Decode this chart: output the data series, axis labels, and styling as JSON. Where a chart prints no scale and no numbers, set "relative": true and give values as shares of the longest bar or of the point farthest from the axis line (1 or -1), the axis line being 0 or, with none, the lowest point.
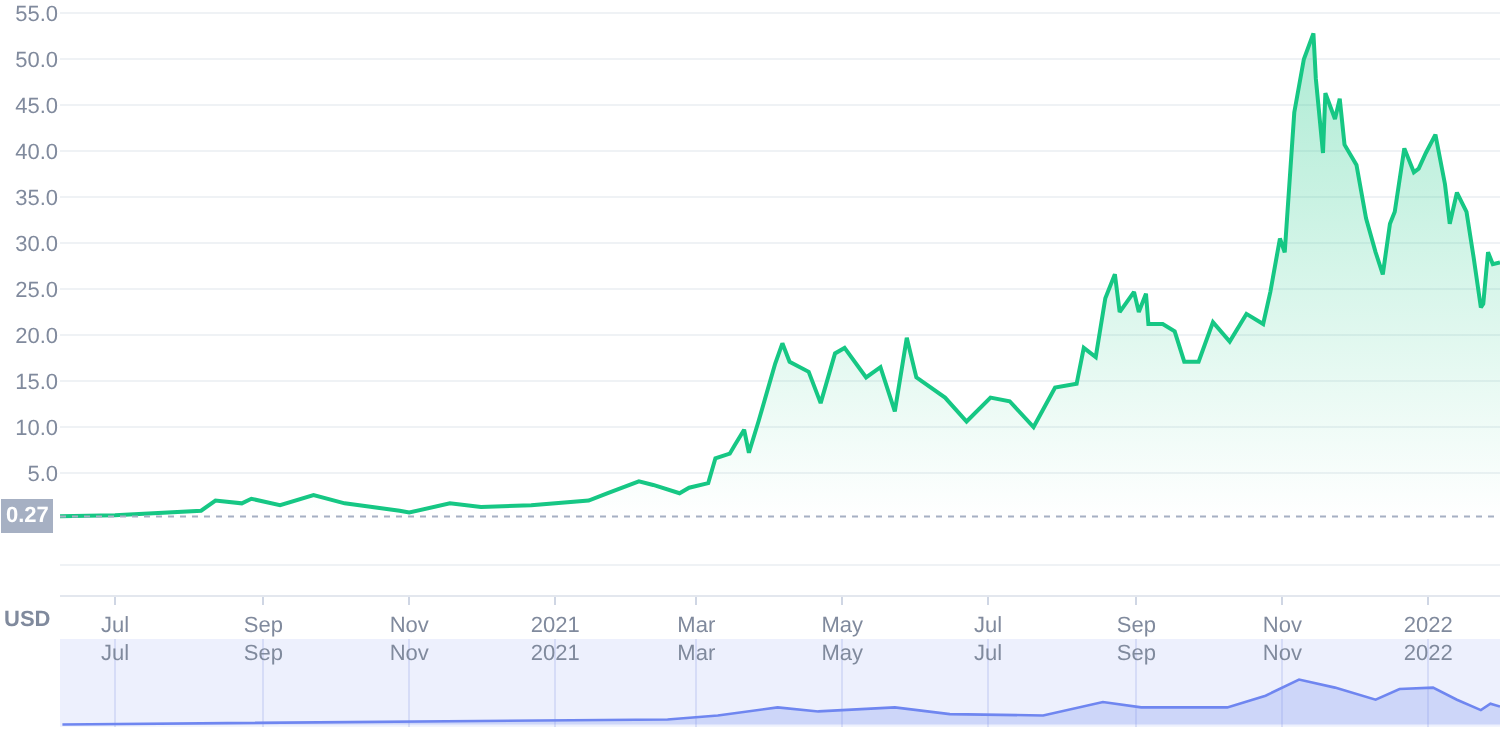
{
  "chart_data": [
    {
      "type": "area",
      "ylabel": "USD",
      "ylim": [
        -8.3,
        56
      ],
      "xlim": [
        "2020-06-08",
        "2022-01-31"
      ],
      "yticks": [
        {
          "value": -5,
          "label": null
        },
        {
          "value": 5,
          "label": "5.0"
        },
        {
          "value": 10,
          "label": "10.0"
        },
        {
          "value": 15,
          "label": "15.0"
        },
        {
          "value": 20,
          "label": "20.0"
        },
        {
          "value": 25,
          "label": "25.0"
        },
        {
          "value": 30,
          "label": "30.0"
        },
        {
          "value": 35,
          "label": "35.0"
        },
        {
          "value": 40,
          "label": "40.0"
        },
        {
          "value": 45,
          "label": "45.0"
        },
        {
          "value": 50,
          "label": "50.0"
        },
        {
          "value": 55,
          "label": "55.0"
        }
      ],
      "xticks": [
        {
          "value": "2020-07-01",
          "label": "Jul"
        },
        {
          "value": "2020-09-01",
          "label": "Sep"
        },
        {
          "value": "2020-11-01",
          "label": "Nov"
        },
        {
          "value": "2021-01-01",
          "label": "2021"
        },
        {
          "value": "2021-03-01",
          "label": "Mar"
        },
        {
          "value": "2021-05-01",
          "label": "May"
        },
        {
          "value": "2021-07-01",
          "label": "Jul"
        },
        {
          "value": "2021-09-01",
          "label": "Sep"
        },
        {
          "value": "2021-11-01",
          "label": "Nov"
        },
        {
          "value": "2022-01-01",
          "label": "2022"
        }
      ],
      "grid": "y",
      "marker": "none",
      "ref_lines": [
        {
          "axis": "y",
          "value": 0.27,
          "label": "0.27",
          "color": "#a6b0c3",
          "line_style": "dotted"
        }
      ],
      "x": [
        "2020-06-08",
        "2020-07-01",
        "2020-08-06",
        "2020-08-12",
        "2020-08-23",
        "2020-08-27",
        "2020-09-08",
        "2020-09-22",
        "2020-10-05",
        "2020-10-28",
        "2020-11-01",
        "2020-11-18",
        "2020-12-01",
        "2020-12-22",
        "2021-01-15",
        "2021-01-23",
        "2021-02-05",
        "2021-02-11",
        "2021-02-22",
        "2021-02-26",
        "2021-03-06",
        "2021-03-09",
        "2021-03-15",
        "2021-03-17",
        "2021-03-21",
        "2021-03-23",
        "2021-03-27",
        "2021-04-03",
        "2021-04-06",
        "2021-04-09",
        "2021-04-17",
        "2021-04-22",
        "2021-04-28",
        "2021-05-02",
        "2021-05-11",
        "2021-05-17",
        "2021-05-23",
        "2021-05-28",
        "2021-06-01",
        "2021-06-13",
        "2021-06-22",
        "2021-07-02",
        "2021-07-10",
        "2021-07-20",
        "2021-07-29",
        "2021-08-07",
        "2021-08-10",
        "2021-08-15",
        "2021-08-19",
        "2021-08-23",
        "2021-08-25",
        "2021-08-31",
        "2021-09-02",
        "2021-09-05",
        "2021-09-06",
        "2021-09-12",
        "2021-09-17",
        "2021-09-21",
        "2021-09-27",
        "2021-10-03",
        "2021-10-10",
        "2021-10-17",
        "2021-10-24",
        "2021-10-27",
        "2021-10-31",
        "2021-11-02",
        "2021-11-06",
        "2021-11-10",
        "2021-11-14",
        "2021-11-15",
        "2021-11-18",
        "2021-11-19",
        "2021-11-23",
        "2021-11-25",
        "2021-11-27",
        "2021-12-02",
        "2021-12-06",
        "2021-12-10",
        "2021-12-13",
        "2021-12-16",
        "2021-12-18",
        "2021-12-22",
        "2021-12-26",
        "2021-12-28",
        "2021-12-31",
        "2022-01-04",
        "2022-01-08",
        "2022-01-10",
        "2022-01-13",
        "2022-01-17",
        "2022-01-20",
        "2022-01-23",
        "2022-01-24",
        "2022-01-26",
        "2022-01-28",
        "2022-01-31"
      ],
      "series": [
        {
          "color": "#16c784",
          "values": [
            0.3,
            0.4,
            0.9,
            2.0,
            1.7,
            2.2,
            1.5,
            2.6,
            1.7,
            0.9,
            0.7,
            1.7,
            1.3,
            1.5,
            2.0,
            2.8,
            4.1,
            3.7,
            2.8,
            3.4,
            3.9,
            6.6,
            7.1,
            8.0,
            9.7,
            7.2,
            10.6,
            16.9,
            19.1,
            17.1,
            16.0,
            12.6,
            18.0,
            18.6,
            15.4,
            16.5,
            11.7,
            19.7,
            15.4,
            13.2,
            10.6,
            13.2,
            12.8,
            10.0,
            14.3,
            14.7,
            18.6,
            17.6,
            24.0,
            26.6,
            22.5,
            24.7,
            22.5,
            24.5,
            21.2,
            21.2,
            20.4,
            17.1,
            17.1,
            21.4,
            19.3,
            22.3,
            21.2,
            24.7,
            30.5,
            29.0,
            44.2,
            50.0,
            52.8,
            47.9,
            39.8,
            46.3,
            43.5,
            45.7,
            40.7,
            38.5,
            32.7,
            29.0,
            26.6,
            32.1,
            33.4,
            40.3,
            37.7,
            38.1,
            39.8,
            41.8,
            36.4,
            32.1,
            35.5,
            33.4,
            28.4,
            23.0,
            23.4,
            29.0,
            27.7,
            27.9
          ]
        }
      ]
    },
    {
      "type": "area",
      "relative": true,
      "xlim": [
        "2020-06-08",
        "2022-01-31"
      ],
      "xticks": [
        {
          "value": "2020-07-01",
          "label": "Jul"
        },
        {
          "value": "2020-09-01",
          "label": "Sep"
        },
        {
          "value": "2020-11-01",
          "label": "Nov"
        },
        {
          "value": "2021-01-01",
          "label": "2021"
        },
        {
          "value": "2021-03-01",
          "label": "Mar"
        },
        {
          "value": "2021-05-01",
          "label": "May"
        },
        {
          "value": "2021-07-01",
          "label": "Jul"
        },
        {
          "value": "2021-09-01",
          "label": "Sep"
        },
        {
          "value": "2021-11-01",
          "label": "Nov"
        },
        {
          "value": "2022-01-01",
          "label": "2022"
        }
      ],
      "grid": "x",
      "marker": "none",
      "x": [
        "2020-06-09",
        "2021-02-17",
        "2021-03-10",
        "2021-04-04",
        "2021-04-21",
        "2021-05-23",
        "2021-06-15",
        "2021-07-24",
        "2021-08-18",
        "2021-09-03",
        "2021-10-09",
        "2021-10-25",
        "2021-11-08",
        "2021-11-23",
        "2021-12-10",
        "2021-12-20",
        "2022-01-03",
        "2022-01-13",
        "2022-01-23",
        "2022-01-27",
        "2022-01-31"
      ],
      "series": [
        {
          "color": "#6f86f0",
          "values": [
            0,
            0.11,
            0.2,
            0.38,
            0.29,
            0.38,
            0.23,
            0.2,
            0.5,
            0.38,
            0.38,
            0.64,
            1,
            0.82,
            0.55,
            0.79,
            0.82,
            0.55,
            0.32,
            0.46,
            0.4
          ]
        }
      ]
    }
  ]
}
